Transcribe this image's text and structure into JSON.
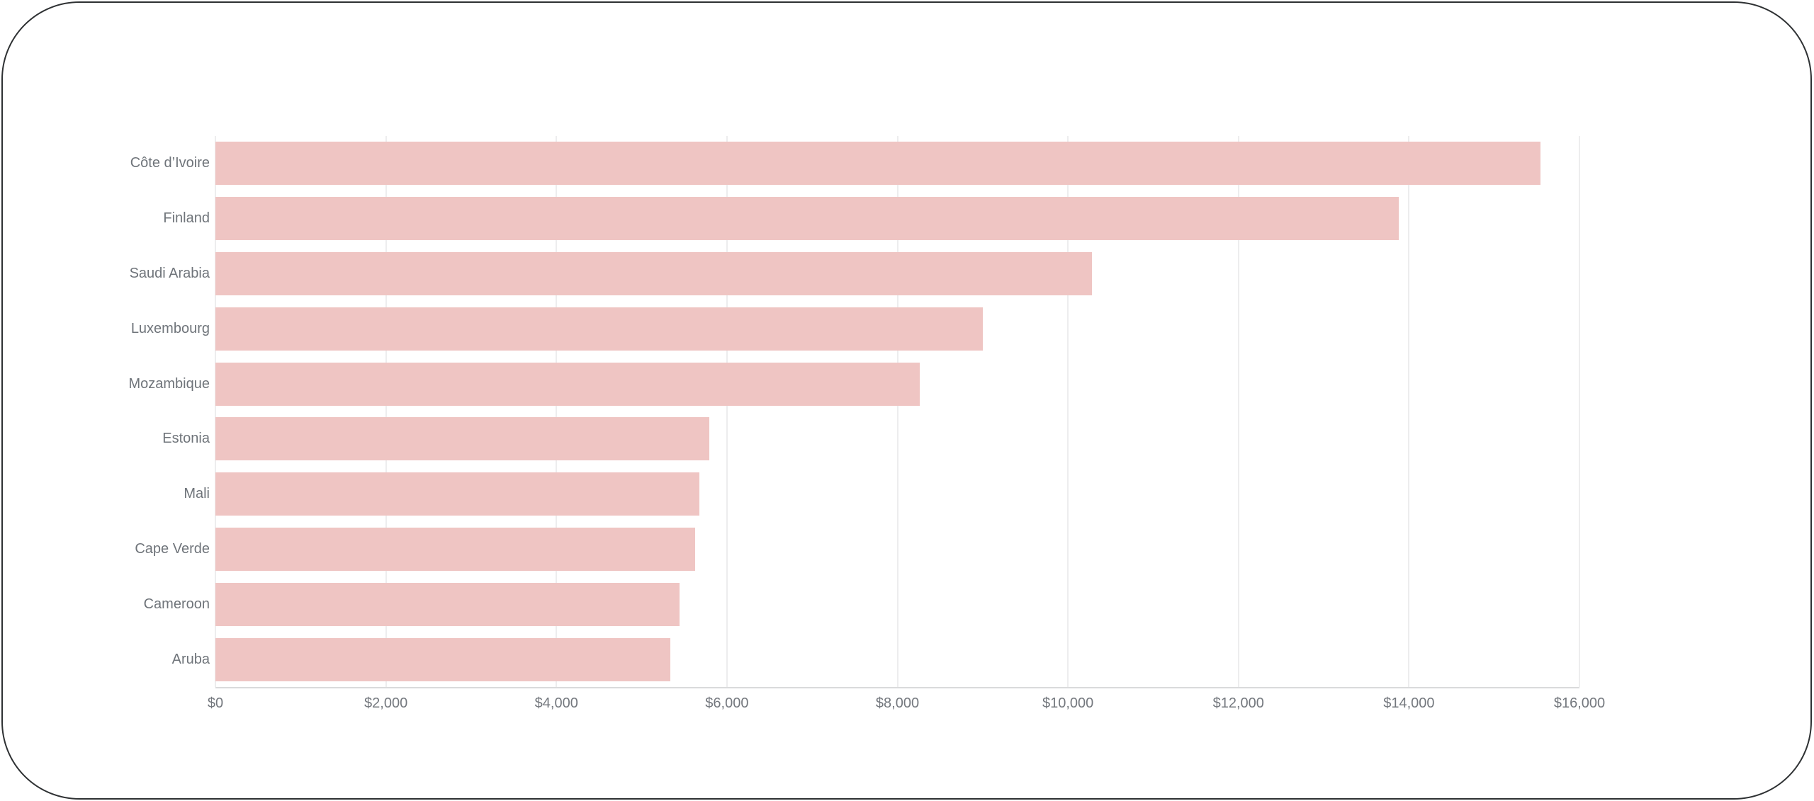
{
  "chart_data": {
    "type": "bar",
    "orientation": "horizontal",
    "categories": [
      "Côte d’Ivoire",
      "Finland",
      "Saudi Arabia",
      "Luxembourg",
      "Mozambique",
      "Estonia",
      "Mali",
      "Cape Verde",
      "Cameroon",
      "Aruba"
    ],
    "values": [
      15540,
      13880,
      10280,
      9000,
      8260,
      5790,
      5680,
      5630,
      5440,
      5340
    ],
    "x_tick_labels": [
      "$0",
      "$2,000",
      "$4,000",
      "$6,000",
      "$8,000",
      "$10,000",
      "$12,000",
      "$14,000",
      "$16,000"
    ],
    "xlim": [
      0,
      16000
    ],
    "grid": true,
    "legend": false,
    "colors": {
      "bar": "#efc5c3",
      "gridline": "#ededee",
      "axis_line": "#d9dadb",
      "category_label": "#6f747a",
      "tick_label": "#74787e",
      "card_border": "#2e3133",
      "card_background": "#ffffff"
    }
  }
}
